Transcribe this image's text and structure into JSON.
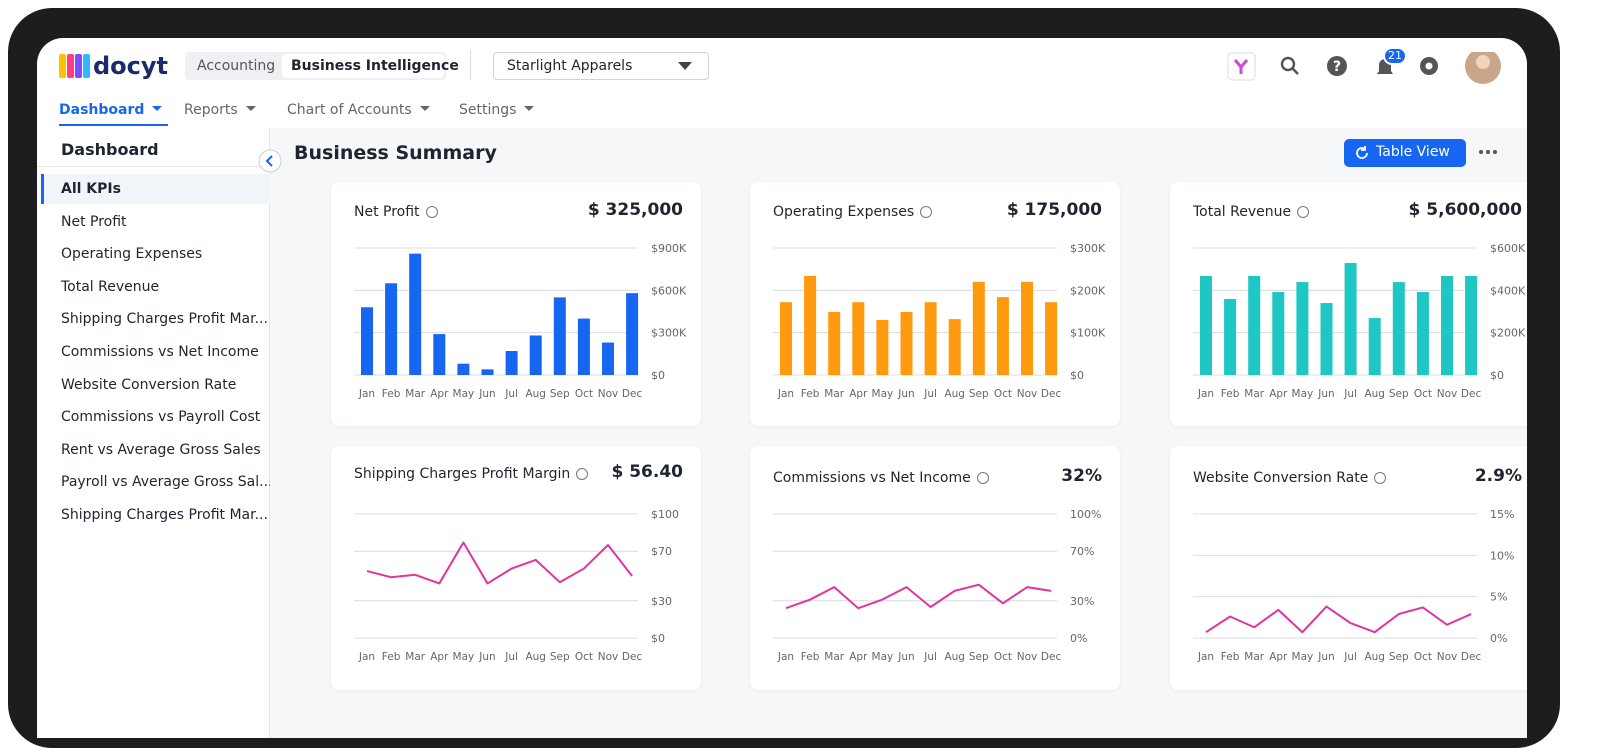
{
  "header": {
    "logo": "docyt",
    "tabs": [
      "Accounting",
      "Business Intelligence"
    ],
    "business": "Starlight Apparels",
    "notifications": "21"
  },
  "nav": [
    "Dashboard",
    "Reports",
    "Chart of Accounts",
    "Settings"
  ],
  "sidebar": {
    "title": "Dashboard",
    "items": [
      "All KPIs",
      "Net Profit",
      "Operating Expenses",
      "Total Revenue",
      "Shipping Charges Profit Mar...",
      "Commissions vs Net Income",
      "Website Conversion Rate",
      "Commissions vs Payroll Cost",
      "Rent vs Average Gross Sales",
      "Payroll vs Average Gross Sal...",
      "Shipping Charges Profit Mar..."
    ]
  },
  "main": {
    "title": "Business Summary",
    "button": "Table View"
  },
  "cards": [
    {
      "title": "Net Profit",
      "value": "$ 325,000",
      "chart": {
        "type": "bar",
        "color": "#1766f2",
        "categories": [
          "Jan",
          "Feb",
          "Mar",
          "Apr",
          "May",
          "Jun",
          "Jul",
          "Aug",
          "Sep",
          "Oct",
          "Nov",
          "Dec"
        ],
        "values": [
          480000,
          650000,
          860000,
          290000,
          80000,
          40000,
          170000,
          280000,
          550000,
          400000,
          230000,
          580000
        ],
        "ylim": [
          0,
          900000
        ],
        "yticks": [
          {
            "value": 0,
            "label": "$0"
          },
          {
            "value": 300000,
            "label": "$300K"
          },
          {
            "value": 600000,
            "label": "$600K"
          },
          {
            "value": 900000,
            "label": "$900K"
          }
        ]
      }
    },
    {
      "title": "Operating Expenses",
      "value": "$ 175,000",
      "chart": {
        "type": "bar",
        "color": "#ff9a0e",
        "categories": [
          "Jan",
          "Feb",
          "Mar",
          "Apr",
          "May",
          "Jun",
          "Jul",
          "Aug",
          "Sep",
          "Oct",
          "Nov",
          "Dec"
        ],
        "values": [
          172000,
          234000,
          149000,
          172000,
          130000,
          149000,
          172000,
          132000,
          220000,
          184000,
          220000,
          172000
        ],
        "ylim": [
          0,
          300000
        ],
        "yticks": [
          {
            "value": 0,
            "label": "$0"
          },
          {
            "value": 100000,
            "label": "$100K"
          },
          {
            "value": 200000,
            "label": "$200K"
          },
          {
            "value": 300000,
            "label": "$300K"
          }
        ]
      }
    },
    {
      "title": "Total Revenue",
      "value": "$ 5,600,000",
      "chart": {
        "type": "bar",
        "color": "#1ec6c4",
        "categories": [
          "Jan",
          "Feb",
          "Mar",
          "Apr",
          "May",
          "Jun",
          "Jul",
          "Aug",
          "Sep",
          "Oct",
          "Nov",
          "Dec"
        ],
        "values": [
          468000,
          359000,
          468000,
          392000,
          439000,
          340000,
          529000,
          269000,
          439000,
          392000,
          468000,
          468000
        ],
        "ylim": [
          0,
          600000
        ],
        "yticks": [
          {
            "value": 0,
            "label": "$0"
          },
          {
            "value": 200000,
            "label": "$200K"
          },
          {
            "value": 400000,
            "label": "$400K"
          },
          {
            "value": 600000,
            "label": "$600K"
          }
        ]
      }
    },
    {
      "title": "Shipping Charges Profit Margin",
      "value": "$ 56.40",
      "chart": {
        "type": "line",
        "color": "#e0359f",
        "categories": [
          "Jan",
          "Feb",
          "Mar",
          "Apr",
          "May",
          "Jun",
          "Jul",
          "Aug",
          "Sep",
          "Oct",
          "Nov",
          "Dec"
        ],
        "values": [
          54,
          49,
          51,
          44,
          77,
          44,
          56,
          63,
          45,
          56,
          75,
          50
        ],
        "ylim": [
          0,
          100
        ],
        "yticks": [
          {
            "value": 0,
            "label": "$0"
          },
          {
            "value": 30,
            "label": "$30"
          },
          {
            "value": 70,
            "label": "$70"
          },
          {
            "value": 100,
            "label": "$100"
          }
        ]
      }
    },
    {
      "title": "Commissions vs Net Income",
      "value": "32%",
      "chart": {
        "type": "line",
        "color": "#e0359f",
        "categories": [
          "Jan",
          "Feb",
          "Mar",
          "Apr",
          "May",
          "Jun",
          "Jul",
          "Aug",
          "Sep",
          "Oct",
          "Nov",
          "Dec"
        ],
        "values": [
          24,
          31,
          41,
          24,
          31,
          41,
          25,
          38,
          43,
          28,
          41,
          38
        ],
        "ylim": [
          0,
          100
        ],
        "yticks": [
          {
            "value": 0,
            "label": "0%"
          },
          {
            "value": 30,
            "label": "30%"
          },
          {
            "value": 70,
            "label": "70%"
          },
          {
            "value": 100,
            "label": "100%"
          }
        ]
      }
    },
    {
      "title": "Website Conversion Rate",
      "value": "2.9%",
      "chart": {
        "type": "line",
        "color": "#e0359f",
        "categories": [
          "Jan",
          "Feb",
          "Mar",
          "Apr",
          "May",
          "Jun",
          "Jul",
          "Aug",
          "Sep",
          "Oct",
          "Nov",
          "Dec"
        ],
        "values": [
          0.7,
          2.6,
          1.3,
          3.4,
          0.7,
          3.8,
          1.8,
          0.7,
          2.9,
          3.7,
          1.6,
          2.9
        ],
        "ylim": [
          0,
          15
        ],
        "yticks": [
          {
            "value": 0,
            "label": "0%"
          },
          {
            "value": 5,
            "label": "5%"
          },
          {
            "value": 10,
            "label": "10%"
          },
          {
            "value": 15,
            "label": "15%"
          }
        ]
      }
    }
  ]
}
